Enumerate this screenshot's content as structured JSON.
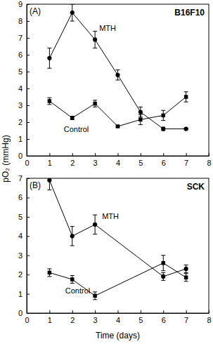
{
  "chart_data": [
    {
      "type": "line",
      "panel": "(A)",
      "title": "B16F10",
      "y_label": "pO₂ (mmHg)",
      "xlim": [
        0,
        8
      ],
      "xticks": [
        0,
        1,
        2,
        3,
        4,
        5,
        6,
        7,
        8
      ],
      "ylim": [
        0,
        9
      ],
      "yticks": [
        0,
        1,
        2,
        3,
        4,
        5,
        6,
        7,
        8,
        9
      ],
      "series": [
        {
          "name": "MTH",
          "color": "#000000",
          "marker": "circle",
          "line_style": "solid",
          "x": [
            1,
            2,
            3,
            4,
            5,
            6,
            7
          ],
          "values": [
            5.8,
            8.5,
            6.9,
            4.8,
            2.6,
            1.6,
            1.6
          ],
          "errors": [
            0.6,
            0.5,
            0.5,
            0.3,
            0.3,
            0.1,
            0.05
          ]
        },
        {
          "name": "Control",
          "color": "#000000",
          "marker": "square",
          "line_style": "solid",
          "x": [
            1,
            2,
            3,
            4,
            5,
            6,
            7
          ],
          "values": [
            3.25,
            2.25,
            3.1,
            1.75,
            2.15,
            2.4,
            3.5
          ],
          "errors": [
            0.2,
            0.1,
            0.2,
            0.05,
            0.3,
            0.3,
            0.3
          ]
        }
      ]
    },
    {
      "type": "line",
      "panel": "(B)",
      "title": "SCK",
      "x_label": "Time (days)",
      "xlim": [
        0,
        8
      ],
      "xticks": [
        0,
        1,
        2,
        3,
        4,
        5,
        6,
        7,
        8
      ],
      "ylim": [
        0,
        7
      ],
      "yticks": [
        0,
        1,
        2,
        3,
        4,
        5,
        6,
        7
      ],
      "series": [
        {
          "name": "MTH",
          "color": "#000000",
          "marker": "circle",
          "line_style": "solid",
          "x": [
            1,
            2,
            3,
            6,
            7
          ],
          "values": [
            6.9,
            4.0,
            4.6,
            1.9,
            2.3
          ],
          "errors": [
            0.5,
            0.5,
            0.5,
            0.2,
            0.2
          ]
        },
        {
          "name": "Control",
          "color": "#000000",
          "marker": "square",
          "line_style": "solid",
          "x": [
            1,
            2,
            3,
            6,
            7
          ],
          "values": [
            2.1,
            1.75,
            0.9,
            2.6,
            1.85
          ],
          "errors": [
            0.2,
            0.2,
            0.2,
            0.4,
            0.2
          ]
        }
      ]
    }
  ]
}
